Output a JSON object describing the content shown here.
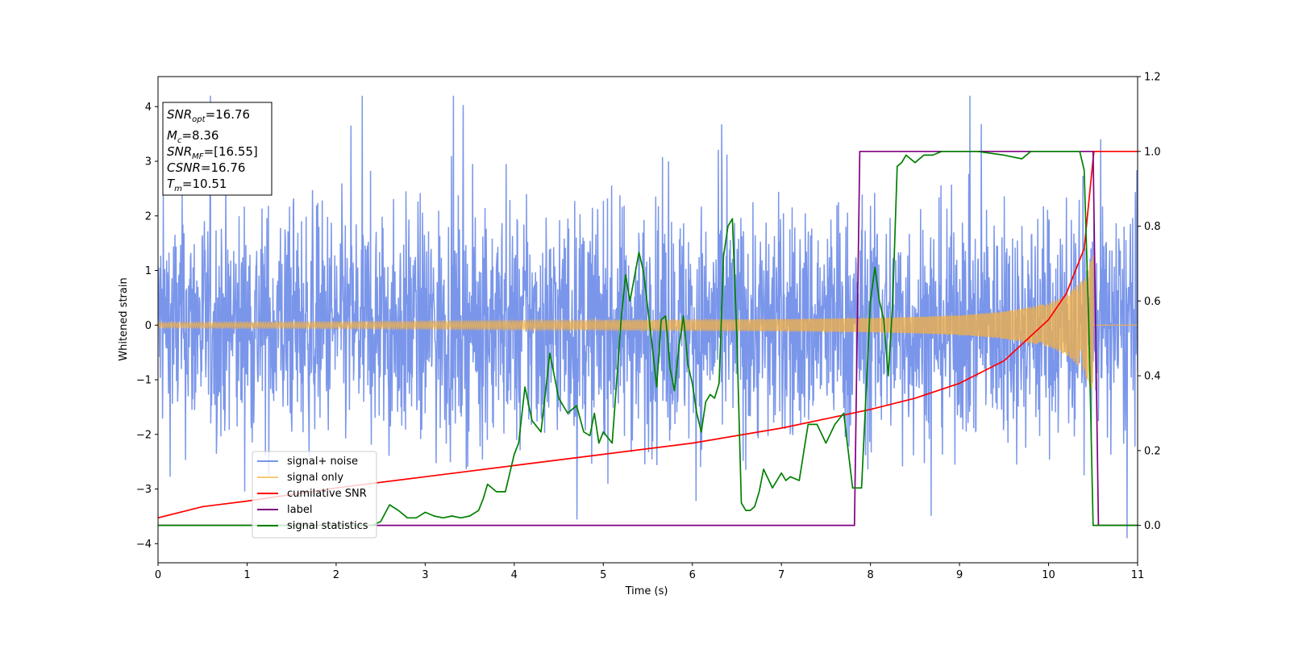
{
  "chart_data": {
    "type": "line",
    "xlabel": "Time (s)",
    "ylabel": "Whitened strain",
    "xlim": [
      0,
      11
    ],
    "ylim": [
      -4.35,
      4.55
    ],
    "y2lim": [
      -0.1,
      1.2
    ],
    "grid": false,
    "legend_position": "lower-left",
    "x_ticks": [
      0,
      1,
      2,
      3,
      4,
      5,
      6,
      7,
      8,
      9,
      10,
      11
    ],
    "x_tick_labels": [
      "0",
      "1",
      "2",
      "3",
      "4",
      "5",
      "6",
      "7",
      "8",
      "9",
      "10",
      "11"
    ],
    "y_ticks": [
      -4,
      -3,
      -2,
      -1,
      0,
      1,
      2,
      3,
      4
    ],
    "y_tick_labels": [
      "−4",
      "−3",
      "−2",
      "−1",
      "0",
      "1",
      "2",
      "3",
      "4"
    ],
    "y2_ticks": [
      0.0,
      0.2,
      0.4,
      0.6,
      0.8,
      1.0,
      1.2
    ],
    "y2_tick_labels": [
      "0.0",
      "0.2",
      "0.4",
      "0.6",
      "0.8",
      "1.0",
      "1.2"
    ],
    "colors": {
      "signal_noise": "#4169e1",
      "signal_only": "#f5b041",
      "cumulative_snr": "#ff0000",
      "label": "#800080",
      "signal_statistics": "#008000"
    },
    "noise_envelope": {
      "band_low": -1.5,
      "band_high": 1.5,
      "peak_max": 4.2,
      "peak_min": -3.9
    },
    "signal_only_envelope": {
      "x": [
        0,
        1,
        2,
        3,
        4,
        5,
        6,
        7,
        8,
        8.5,
        9,
        9.5,
        10,
        10.2,
        10.4,
        10.5
      ],
      "amplitude": [
        0.05,
        0.055,
        0.06,
        0.07,
        0.08,
        0.09,
        0.1,
        0.11,
        0.13,
        0.15,
        0.18,
        0.25,
        0.4,
        0.55,
        0.85,
        1.3
      ]
    },
    "series": [
      {
        "name": "cumilative SNR",
        "axis": "right",
        "x": [
          0,
          0.5,
          1,
          2,
          3,
          4,
          5,
          6,
          7,
          7.5,
          8,
          8.5,
          9,
          9.5,
          10,
          10.2,
          10.4,
          10.5,
          10.51,
          11
        ],
        "y": [
          0.02,
          0.05,
          0.065,
          0.1,
          0.13,
          0.16,
          0.19,
          0.22,
          0.26,
          0.285,
          0.31,
          0.34,
          0.38,
          0.44,
          0.55,
          0.62,
          0.74,
          0.98,
          1.0,
          1.0
        ]
      },
      {
        "name": "label",
        "axis": "right",
        "x": [
          0,
          7.82,
          7.88,
          10.5,
          10.56,
          11
        ],
        "y": [
          0,
          0,
          1,
          1,
          0,
          0
        ]
      },
      {
        "name": "signal statistics",
        "axis": "right",
        "x": [
          0,
          2.4,
          2.5,
          2.6,
          2.7,
          2.8,
          2.9,
          3.0,
          3.1,
          3.2,
          3.3,
          3.4,
          3.5,
          3.6,
          3.65,
          3.7,
          3.8,
          3.9,
          3.95,
          4.0,
          4.05,
          4.12,
          4.2,
          4.3,
          4.4,
          4.5,
          4.6,
          4.7,
          4.78,
          4.85,
          4.9,
          4.95,
          5.0,
          5.1,
          5.2,
          5.25,
          5.3,
          5.4,
          5.45,
          5.5,
          5.55,
          5.6,
          5.65,
          5.7,
          5.75,
          5.8,
          5.85,
          5.9,
          5.95,
          6.0,
          6.05,
          6.1,
          6.15,
          6.2,
          6.25,
          6.3,
          6.35,
          6.4,
          6.45,
          6.5,
          6.55,
          6.6,
          6.65,
          6.7,
          6.75,
          6.8,
          6.9,
          7.0,
          7.05,
          7.1,
          7.2,
          7.3,
          7.4,
          7.5,
          7.6,
          7.7,
          7.8,
          7.9,
          8.0,
          8.05,
          8.1,
          8.15,
          8.2,
          8.25,
          8.3,
          8.35,
          8.4,
          8.5,
          8.6,
          8.7,
          8.8,
          9.0,
          9.2,
          9.5,
          9.7,
          9.8,
          10.0,
          10.2,
          10.35,
          10.4,
          10.45,
          10.5,
          10.6,
          11
        ],
        "y": [
          0.0,
          0.0,
          0.01,
          0.055,
          0.04,
          0.02,
          0.02,
          0.035,
          0.025,
          0.02,
          0.025,
          0.02,
          0.025,
          0.04,
          0.07,
          0.11,
          0.09,
          0.09,
          0.14,
          0.19,
          0.22,
          0.37,
          0.28,
          0.25,
          0.46,
          0.34,
          0.3,
          0.32,
          0.25,
          0.24,
          0.3,
          0.22,
          0.25,
          0.22,
          0.55,
          0.67,
          0.6,
          0.73,
          0.68,
          0.58,
          0.48,
          0.37,
          0.55,
          0.56,
          0.42,
          0.36,
          0.48,
          0.56,
          0.43,
          0.38,
          0.3,
          0.25,
          0.33,
          0.35,
          0.34,
          0.38,
          0.72,
          0.8,
          0.82,
          0.5,
          0.06,
          0.04,
          0.04,
          0.05,
          0.09,
          0.15,
          0.1,
          0.14,
          0.12,
          0.13,
          0.12,
          0.27,
          0.27,
          0.22,
          0.27,
          0.3,
          0.1,
          0.1,
          0.6,
          0.69,
          0.6,
          0.55,
          0.4,
          0.6,
          0.96,
          0.97,
          0.99,
          0.97,
          0.99,
          0.99,
          1.0,
          1.0,
          1.0,
          0.99,
          0.98,
          1.0,
          1.0,
          1.0,
          1.0,
          0.95,
          0.55,
          0.0,
          0.0,
          0.0
        ]
      }
    ],
    "legend": [
      "signal+ noise",
      "signal only",
      "cumilative SNR",
      "label",
      "signal statistics"
    ],
    "annotation": {
      "snr_opt": {
        "base": "SNR",
        "sub": "opt",
        "value": "=16.76"
      },
      "mc": {
        "base": "M",
        "sub": "c",
        "value": "=8.36"
      },
      "snr_mf": {
        "base": "SNR",
        "sub": "MF",
        "value": "=[16.55]"
      },
      "csnr": {
        "base": "CSNR",
        "value": "=16.76"
      },
      "tm": {
        "base": "T",
        "sub": "m",
        "value": "=10.51"
      }
    }
  }
}
